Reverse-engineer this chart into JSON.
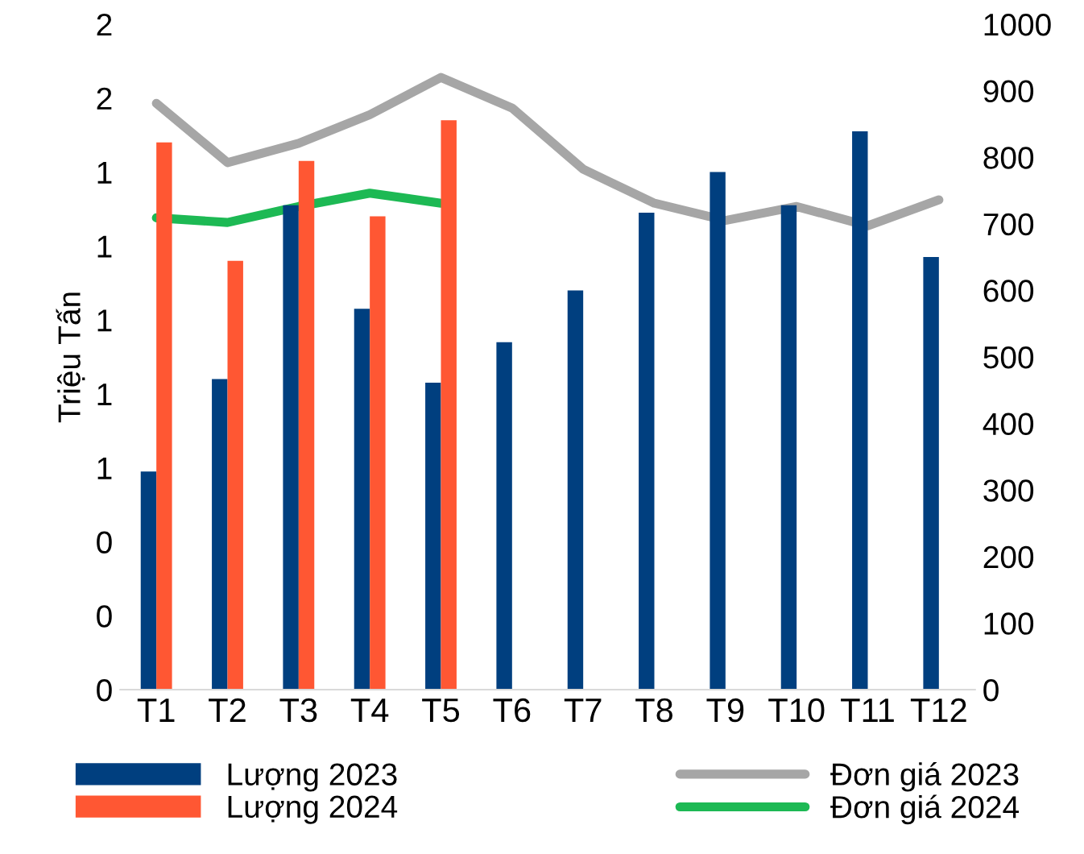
{
  "chart_data": {
    "type": "bar",
    "ylabel": "Triệu Tấn",
    "categories": [
      "T1",
      "T2",
      "T3",
      "T4",
      "T5",
      "T6",
      "T7",
      "T8",
      "T9",
      "T10",
      "T11",
      "T12"
    ],
    "series": [
      {
        "name": "Lượng 2023",
        "color": "#003f7f",
        "values": [
          0.59,
          0.84,
          1.31,
          1.03,
          0.83,
          0.94,
          1.08,
          1.29,
          1.4,
          1.31,
          1.51,
          1.17
        ]
      },
      {
        "name": "Lượng 2024",
        "color": "#ff5733",
        "values": [
          1.48,
          1.16,
          1.43,
          1.28,
          1.54,
          null,
          null,
          null,
          null,
          null,
          null,
          null
        ]
      },
      {
        "name": "Đơn giá 2023",
        "type": "line",
        "axis": "y2",
        "color": "#a6a6a6",
        "values": [
          881,
          792,
          821,
          864,
          920,
          874,
          782,
          731,
          705,
          726,
          697,
          736
        ]
      },
      {
        "name": "Đơn giá 2024",
        "type": "line",
        "axis": "y2",
        "color": "#1db954",
        "values": [
          709,
          702,
          726,
          746,
          731,
          null,
          null,
          null,
          null,
          null,
          null,
          null
        ]
      }
    ],
    "ylim": [
      0,
      1.8
    ],
    "yticks": [
      {
        "value": 0,
        "label": "0"
      },
      {
        "value": 0.2,
        "label": "0"
      },
      {
        "value": 0.4,
        "label": "0"
      },
      {
        "value": 0.6,
        "label": "1"
      },
      {
        "value": 0.8,
        "label": "1"
      },
      {
        "value": 1.0,
        "label": "1"
      },
      {
        "value": 1.2,
        "label": "1"
      },
      {
        "value": 1.4,
        "label": "1"
      },
      {
        "value": 1.6,
        "label": "2"
      },
      {
        "value": 1.8,
        "label": "2"
      }
    ],
    "y2lim": [
      0,
      1000
    ],
    "y2ticks": [
      0,
      100,
      200,
      300,
      400,
      500,
      600,
      700,
      800,
      900,
      1000
    ],
    "grid": false,
    "legend": "bottom",
    "marker": "none",
    "line_style": "solid"
  }
}
